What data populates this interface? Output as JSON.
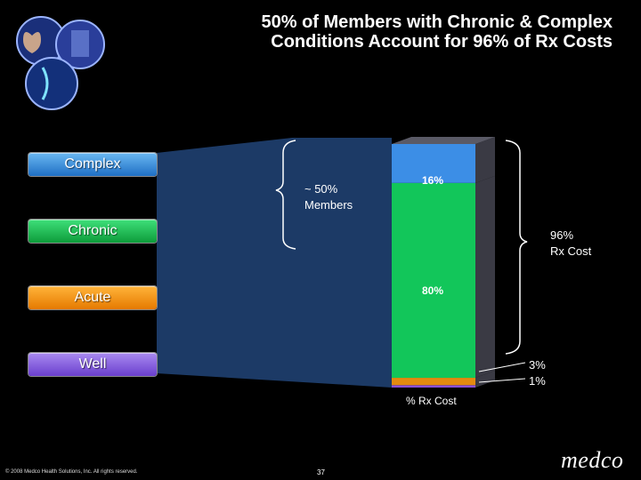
{
  "title": {
    "line1": "50% of Members with Chronic & Complex",
    "line2": "Conditions Account for 96% of Rx Costs"
  },
  "segments": {
    "complex": "Complex",
    "chronic": "Chronic",
    "acute": "Acute",
    "well": "Well"
  },
  "annotations": {
    "members_line1": "~ 50%",
    "members_line2": "Members",
    "rx_line1": "96%",
    "rx_line2": "Rx Cost"
  },
  "footer": {
    "copyright": "© 2008 Medco Health Solutions, Inc. All rights reserved.",
    "page": "37",
    "brand": "medco"
  },
  "colors": {
    "complex": "#3c8ee6",
    "chronic": "#12c65a",
    "acute": "#e48a10",
    "well": "#8a4fd8",
    "funnel": "#1c3a66",
    "bar_side": "#3a3a44"
  },
  "chart_data": {
    "type": "bar",
    "stacked": true,
    "xlabel": "% Rx Cost",
    "categories": [
      "% Rx Cost"
    ],
    "series": [
      {
        "name": "Well",
        "values": [
          1
        ],
        "label": "1%"
      },
      {
        "name": "Acute",
        "values": [
          3
        ],
        "label": "3%"
      },
      {
        "name": "Chronic",
        "values": [
          80
        ],
        "label": "80%"
      },
      {
        "name": "Complex",
        "values": [
          16
        ],
        "label": "16%"
      }
    ],
    "ylim": [
      0,
      100
    ]
  }
}
